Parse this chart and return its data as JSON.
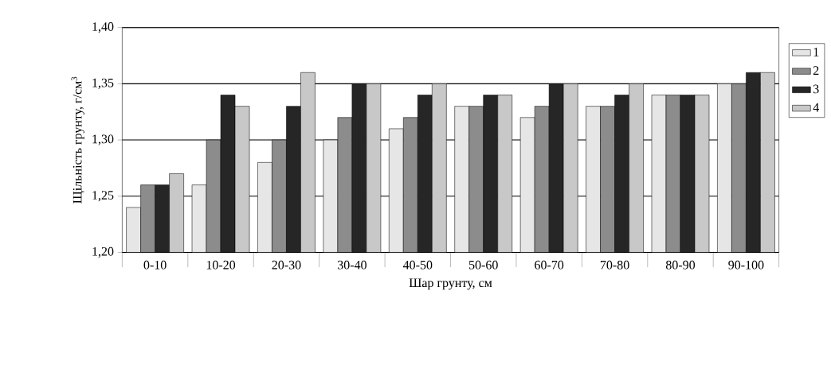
{
  "chart_data": {
    "type": "bar",
    "xlabel": "Шар грунту, см",
    "ylabel": "Щільність грунту, г/см$^{3}$",
    "categories": [
      "0-10",
      "10-20",
      "20-30",
      "30-40",
      "40-50",
      "50-60",
      "60-70",
      "70-80",
      "80-90",
      "90-100"
    ],
    "series": [
      {
        "name": "1",
        "color": "#e6e6e6",
        "values": [
          1.24,
          1.26,
          1.28,
          1.3,
          1.31,
          1.33,
          1.32,
          1.33,
          1.34,
          1.35
        ]
      },
      {
        "name": "2",
        "color": "#8c8c8c",
        "values": [
          1.26,
          1.3,
          1.3,
          1.32,
          1.32,
          1.33,
          1.33,
          1.33,
          1.34,
          1.35
        ]
      },
      {
        "name": "3",
        "color": "#262626",
        "values": [
          1.26,
          1.34,
          1.33,
          1.35,
          1.34,
          1.34,
          1.35,
          1.34,
          1.34,
          1.36
        ]
      },
      {
        "name": "4",
        "color": "#c8c8c8",
        "values": [
          1.27,
          1.33,
          1.36,
          1.35,
          1.35,
          1.34,
          1.35,
          1.35,
          1.34,
          1.36
        ]
      }
    ],
    "ylim": [
      1.2,
      1.4
    ],
    "yticks": [
      {
        "value": 1.2,
        "label": "1,20"
      },
      {
        "value": 1.25,
        "label": "1,25"
      },
      {
        "value": 1.3,
        "label": "1,30"
      },
      {
        "value": 1.35,
        "label": "1,35"
      },
      {
        "value": 1.4,
        "label": "1,40"
      }
    ],
    "grid": "y",
    "legend": "right"
  }
}
